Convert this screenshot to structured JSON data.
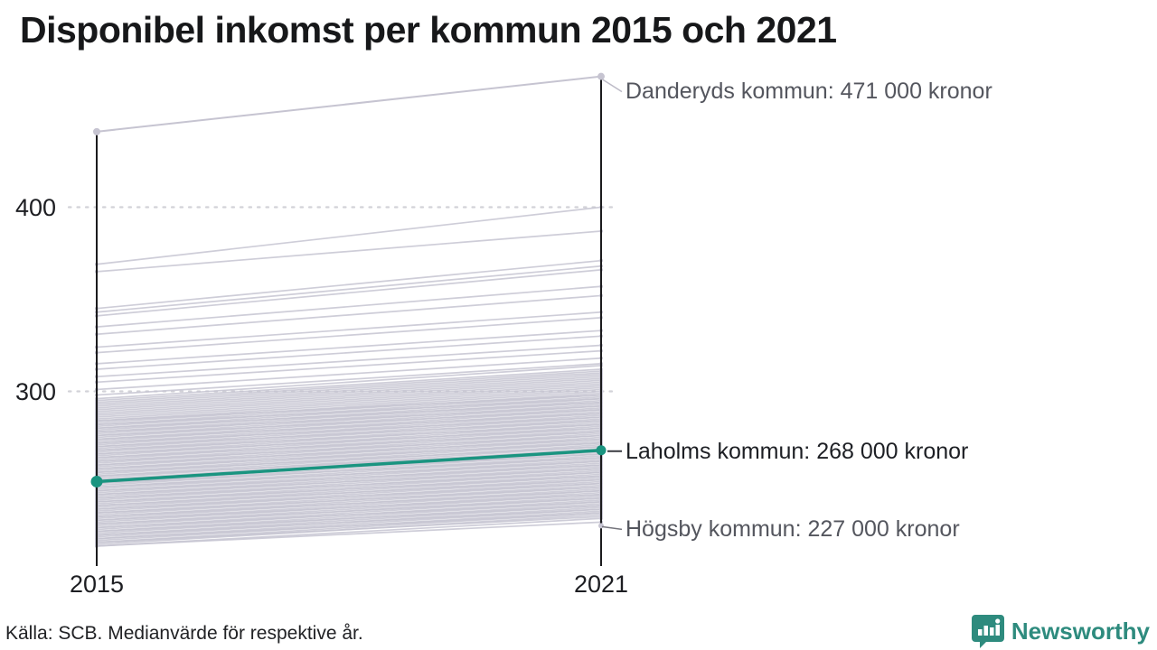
{
  "title": "Disponibel inkomst per kommun 2015 och 2021",
  "footer": {
    "source": "Källa: SCB. Medianvärde för respektive år."
  },
  "branding": {
    "name": "Newsworthy",
    "color": "#2e8b7e"
  },
  "chart_data": {
    "type": "line",
    "variant": "slopegraph",
    "x": [
      2015,
      2021
    ],
    "x_labels": [
      "2015",
      "2021"
    ],
    "unit": "tusen kronor (1000 kronor)",
    "ylim": [
      210,
      480
    ],
    "grid": "dotted-horizontal",
    "yticks": [
      {
        "value": 400,
        "label": "400"
      },
      {
        "value": 300,
        "label": "300"
      }
    ],
    "highlighted": [
      {
        "name": "Danderyds kommun",
        "label": "Danderyds kommun: 471 000 kronor",
        "values": [
          441,
          471
        ],
        "style": "top-gray"
      },
      {
        "name": "Laholms kommun",
        "label": "Laholms kommun: 268 000 kronor",
        "values": [
          251,
          268
        ],
        "style": "accent"
      },
      {
        "name": "Högsby kommun",
        "label": "Högsby kommun: 227 000 kronor",
        "values": [
          215,
          227
        ],
        "style": "bottom-gray"
      }
    ],
    "background_series": [
      [
        369,
        400
      ],
      [
        365,
        387
      ],
      [
        345,
        371
      ],
      [
        343,
        368
      ],
      [
        341,
        366
      ],
      [
        335,
        357
      ],
      [
        331,
        352
      ],
      [
        324,
        343
      ],
      [
        321,
        340
      ],
      [
        315,
        333
      ],
      [
        312,
        330
      ],
      [
        308,
        325
      ],
      [
        305,
        322
      ],
      [
        301,
        318
      ],
      [
        298,
        315
      ],
      [
        296,
        314
      ],
      [
        295,
        312
      ],
      [
        294,
        311
      ],
      [
        293,
        310
      ],
      [
        292,
        309
      ],
      [
        291,
        308
      ],
      [
        290,
        307
      ],
      [
        289,
        306
      ],
      [
        288,
        305
      ],
      [
        287,
        304
      ],
      [
        286,
        303
      ],
      [
        285,
        302
      ],
      [
        284,
        301
      ],
      [
        284,
        298
      ],
      [
        283,
        300
      ],
      [
        282,
        299
      ],
      [
        282,
        296
      ],
      [
        281,
        298
      ],
      [
        280,
        297
      ],
      [
        280,
        294
      ],
      [
        279,
        296
      ],
      [
        278,
        295
      ],
      [
        278,
        292
      ],
      [
        277,
        294
      ],
      [
        276,
        293
      ],
      [
        276,
        290
      ],
      [
        275,
        292
      ],
      [
        274,
        291
      ],
      [
        274,
        288
      ],
      [
        273,
        290
      ],
      [
        272,
        289
      ],
      [
        272,
        286
      ],
      [
        271,
        288
      ],
      [
        270,
        287
      ],
      [
        270,
        284
      ],
      [
        269,
        286
      ],
      [
        268,
        285
      ],
      [
        268,
        282
      ],
      [
        267,
        284
      ],
      [
        266,
        283
      ],
      [
        266,
        280
      ],
      [
        265,
        282
      ],
      [
        264,
        281
      ],
      [
        264,
        278
      ],
      [
        263,
        280
      ],
      [
        262,
        279
      ],
      [
        262,
        276
      ],
      [
        261,
        278
      ],
      [
        260,
        277
      ],
      [
        260,
        274
      ],
      [
        259,
        276
      ],
      [
        258,
        275
      ],
      [
        258,
        272
      ],
      [
        257,
        274
      ],
      [
        256,
        273
      ],
      [
        256,
        270
      ],
      [
        255,
        272
      ],
      [
        254,
        271
      ],
      [
        254,
        268
      ],
      [
        253,
        270
      ],
      [
        252,
        269
      ],
      [
        252,
        266
      ],
      [
        251,
        267
      ],
      [
        250,
        266
      ],
      [
        250,
        264
      ],
      [
        249,
        265
      ],
      [
        248,
        264
      ],
      [
        248,
        262
      ],
      [
        247,
        263
      ],
      [
        246,
        262
      ],
      [
        246,
        260
      ],
      [
        245,
        261
      ],
      [
        244,
        260
      ],
      [
        244,
        258
      ],
      [
        243,
        259
      ],
      [
        242,
        258
      ],
      [
        242,
        256
      ],
      [
        241,
        257
      ],
      [
        240,
        256
      ],
      [
        240,
        254
      ],
      [
        239,
        255
      ],
      [
        238,
        254
      ],
      [
        238,
        252
      ],
      [
        237,
        253
      ],
      [
        236,
        252
      ],
      [
        236,
        250
      ],
      [
        235,
        251
      ],
      [
        234,
        250
      ],
      [
        234,
        248
      ],
      [
        233,
        249
      ],
      [
        232,
        248
      ],
      [
        232,
        246
      ],
      [
        231,
        247
      ],
      [
        230,
        246
      ],
      [
        230,
        244
      ],
      [
        229,
        245
      ],
      [
        228,
        244
      ],
      [
        228,
        242
      ],
      [
        227,
        243
      ],
      [
        226,
        242
      ],
      [
        226,
        240
      ],
      [
        225,
        241
      ],
      [
        224,
        240
      ],
      [
        224,
        238
      ],
      [
        223,
        239
      ],
      [
        222,
        238
      ],
      [
        222,
        236
      ],
      [
        221,
        237
      ],
      [
        220,
        236
      ],
      [
        220,
        234
      ],
      [
        219,
        235
      ],
      [
        218,
        234
      ],
      [
        218,
        232
      ],
      [
        217,
        233
      ],
      [
        216,
        231
      ],
      [
        216,
        229
      ]
    ],
    "colors": {
      "accent": "#1a9480",
      "background_line": "#c6c4d1",
      "axis": "#1b1b1d",
      "grid": "#d2d2d8",
      "leader_light": "#bdbbc7",
      "leader_mid": "#74747c",
      "leader_dark": "#3b3d43"
    }
  }
}
